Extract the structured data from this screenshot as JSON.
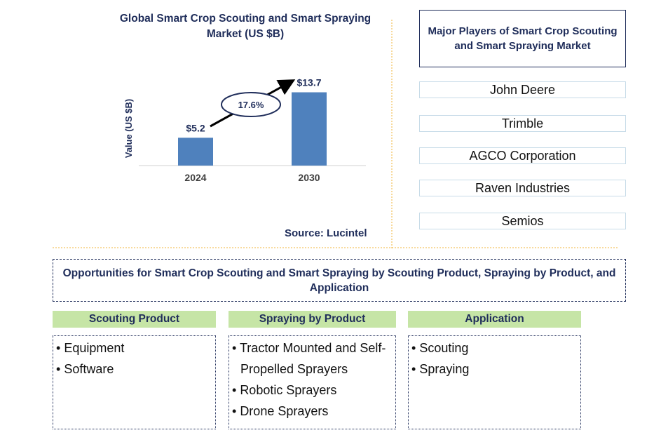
{
  "chart_data": {
    "type": "bar",
    "title": "Global Smart Crop Scouting and Smart Spraying Market (US $B)",
    "y_label": "Value (US $B)",
    "categories": [
      "2024",
      "2030"
    ],
    "values": [
      5.2,
      13.7
    ],
    "value_labels": [
      "$5.2",
      "$13.7"
    ],
    "color": "#4f81bd",
    "ylim": [
      0,
      16
    ],
    "growth_label": "17.6%",
    "source": "Source: Lucintel"
  },
  "players": {
    "title": "Major Players of Smart Crop Scouting and Smart Spraying Market",
    "items": [
      "John Deere",
      "Trimble",
      "AGCO Corporation",
      "Raven Industries",
      "Semios"
    ]
  },
  "opportunities": {
    "title": "Opportunities for Smart Crop Scouting and Smart Spraying by Scouting Product, Spraying by Product, and Application",
    "columns": [
      {
        "heading": "Scouting Product",
        "items": [
          "Equipment",
          "Software"
        ]
      },
      {
        "heading": "Spraying by Product",
        "items": [
          "Tractor Mounted and Self-Propelled Sprayers",
          "Robotic Sprayers",
          "Drone Sprayers"
        ]
      },
      {
        "heading": "Application",
        "items": [
          "Scouting",
          "Spraying"
        ]
      }
    ]
  }
}
